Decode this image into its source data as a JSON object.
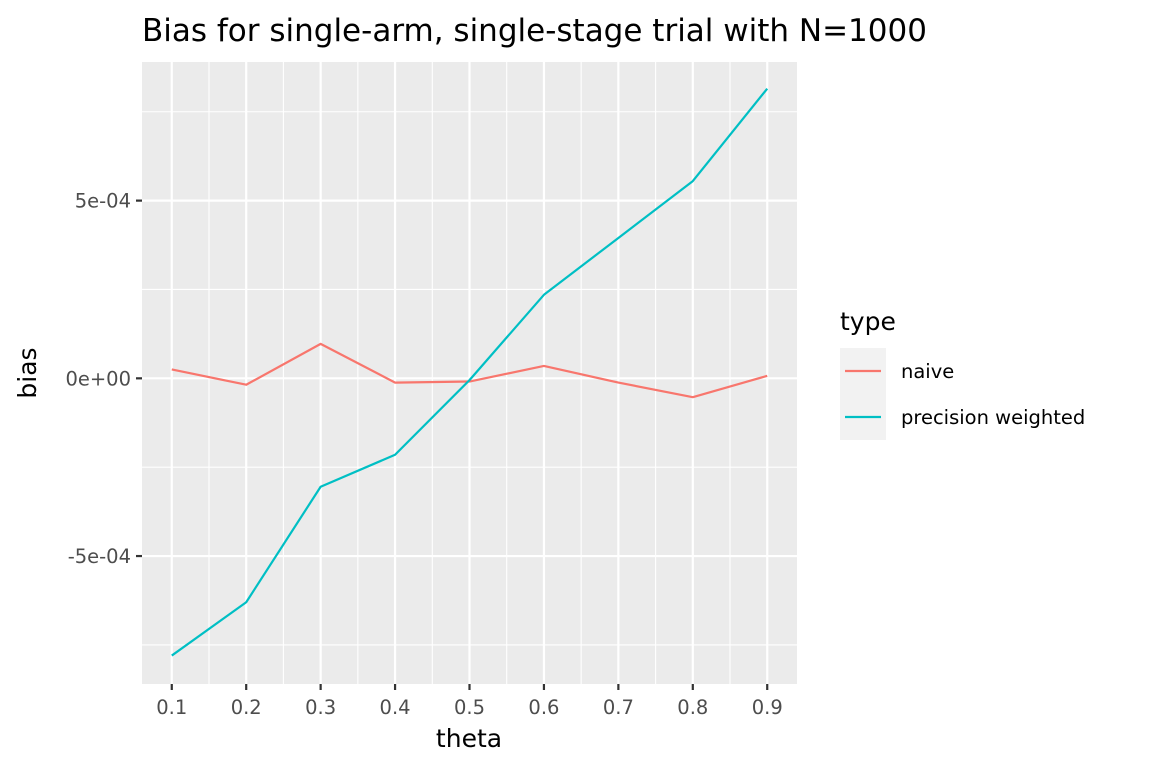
{
  "chart_data": {
    "type": "line",
    "title": "Bias for single-arm, single-stage trial with N=1000",
    "xlabel": "theta",
    "ylabel": "bias",
    "x": [
      0.1,
      0.2,
      0.3,
      0.4,
      0.5,
      0.6,
      0.7,
      0.8,
      0.9
    ],
    "x_ticks": [
      "0.1",
      "0.2",
      "0.3",
      "0.4",
      "0.5",
      "0.6",
      "0.7",
      "0.8",
      "0.9"
    ],
    "xlim": [
      0.06,
      0.94
    ],
    "y_ticks": [
      {
        "value": 0.0005,
        "label": "5e-04"
      },
      {
        "value": 0,
        "label": "0e+00"
      },
      {
        "value": -0.0005,
        "label": "-5e-04"
      }
    ],
    "ylim": [
      -0.00086,
      0.00089
    ],
    "grid": true,
    "legend": {
      "title": "type",
      "position": "right"
    },
    "series": [
      {
        "name": "naive",
        "color": "#F8766D",
        "values": [
          2.5e-05,
          -1.8e-05,
          9.7e-05,
          -1.2e-05,
          -9e-06,
          3.5e-05,
          -1.2e-05,
          -5.3e-05,
          7e-06
        ]
      },
      {
        "name": "precision weighted",
        "color": "#00BFC4",
        "values": [
          -0.00078,
          -0.00063,
          -0.000305,
          -0.000215,
          -5e-06,
          0.000235,
          0.000395,
          0.000555,
          0.000815
        ]
      }
    ]
  }
}
